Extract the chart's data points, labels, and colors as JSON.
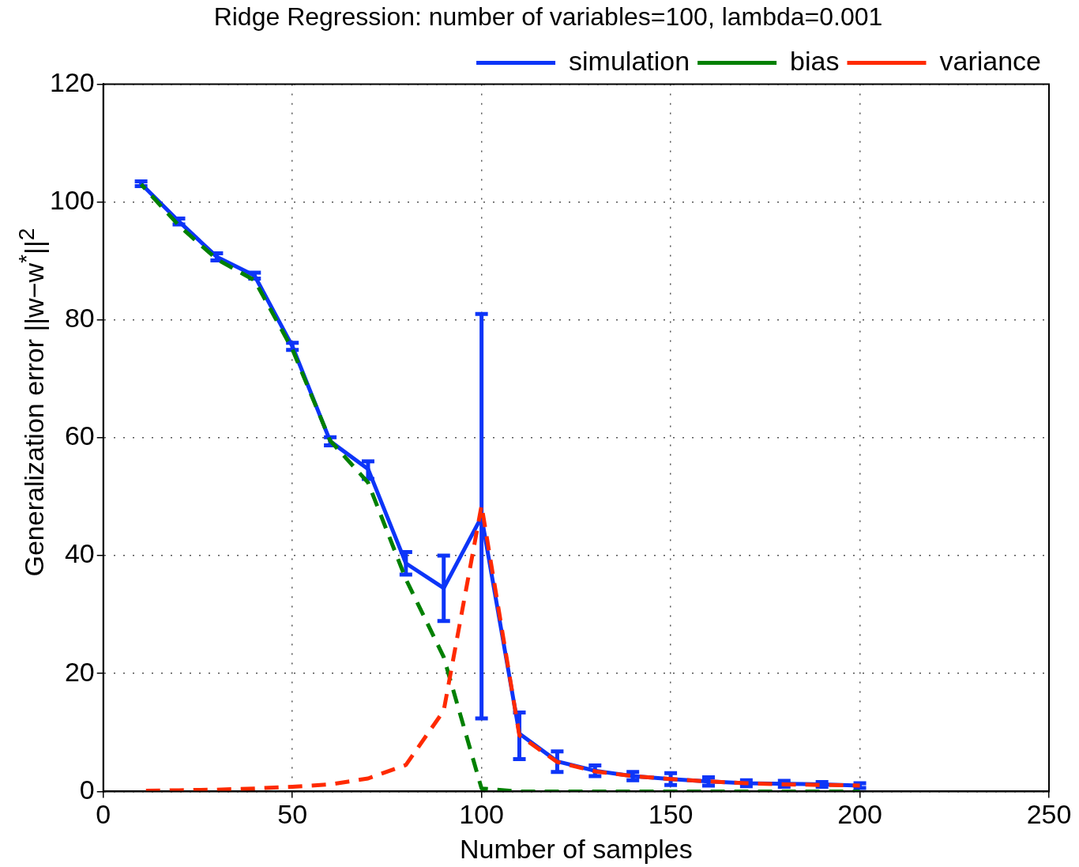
{
  "chart_data": {
    "type": "line",
    "title": "Ridge Regression: number of variables=100, lambda=0.001",
    "xlabel": "Number of samples",
    "ylabel": "Generalization error ||w−w$^{*}$||$^{2}$",
    "x": [
      10,
      20,
      30,
      40,
      50,
      60,
      70,
      80,
      90,
      100,
      110,
      120,
      130,
      140,
      150,
      160,
      170,
      180,
      190,
      200
    ],
    "series": [
      {
        "name": "simulation",
        "color": "#0d35f8",
        "line_style": "solid",
        "values": [
          103.1,
          96.7,
          90.7,
          87.5,
          75.5,
          59.4,
          54.7,
          38.7,
          34.5,
          46.6,
          9.8,
          5.1,
          3.5,
          2.6,
          2.1,
          1.7,
          1.4,
          1.3,
          1.2,
          1.0
        ],
        "errors": [
          0.4,
          0.5,
          0.6,
          0.5,
          0.6,
          0.7,
          [
            53,
            56
          ],
          [
            36.8,
            40.6
          ],
          [
            28.9,
            40
          ],
          [
            12.4,
            81
          ],
          [
            5.5,
            13.4
          ],
          [
            3.3,
            6.8
          ],
          [
            2.6,
            4.4
          ],
          [
            1.9,
            3.3
          ],
          1.0,
          0.7,
          0.5,
          0.5,
          0.4,
          0.4
        ]
      },
      {
        "name": "bias",
        "color": "#008000",
        "line_style": "dashed",
        "values": [
          103,
          96,
          90.3,
          86.7,
          75,
          59.5,
          52.4,
          36,
          22.8,
          0.5,
          0,
          0,
          0,
          0,
          0,
          0,
          0,
          0,
          0,
          0
        ]
      },
      {
        "name": "variance",
        "color": "#ff2a00",
        "line_style": "dashed",
        "values": [
          0.1,
          0.2,
          0.3,
          0.5,
          0.8,
          1.2,
          2.2,
          4.5,
          13.7,
          48.5,
          9.5,
          5,
          3.4,
          2.6,
          2.1,
          1.7,
          1.4,
          1.2,
          1.1,
          1.0
        ]
      }
    ],
    "xlim": [
      0,
      250
    ],
    "xticks": [
      0,
      50,
      100,
      150,
      200,
      250
    ],
    "ylim": [
      0,
      120
    ],
    "yticks": [
      0,
      20,
      40,
      60,
      80,
      100,
      120
    ],
    "grid": true,
    "legend": "top right",
    "marker": "none"
  }
}
